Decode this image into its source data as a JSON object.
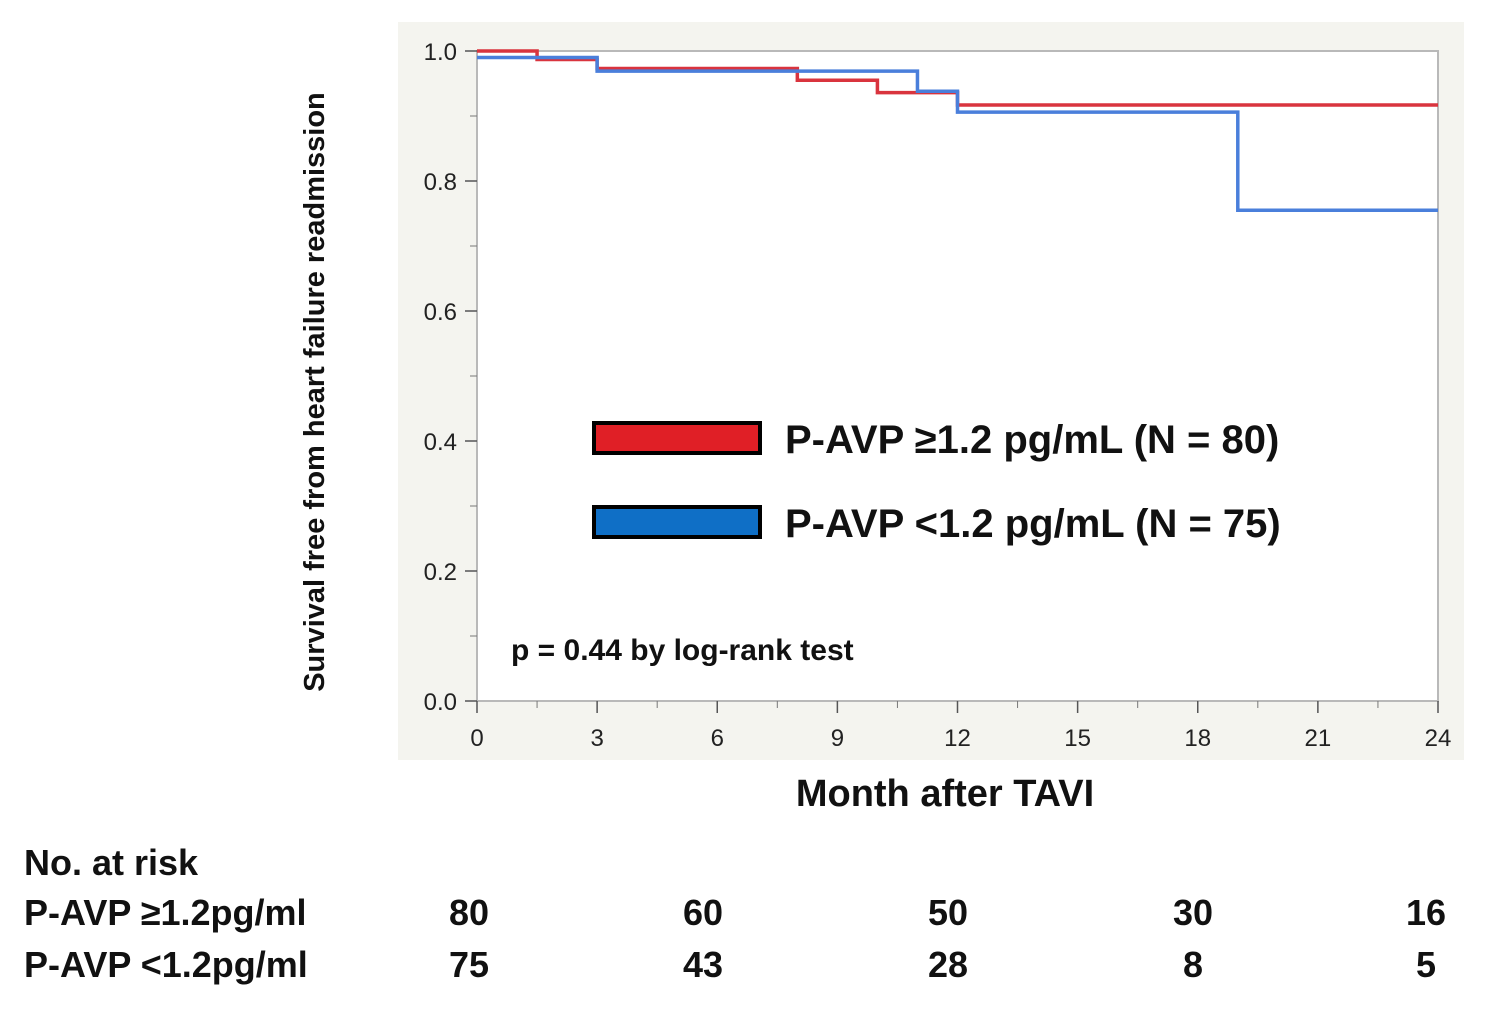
{
  "chart_data": {
    "type": "line",
    "subtype": "kaplan-meier",
    "xlabel": "Month after TAVI",
    "ylabel": "Survival free from heart failure readmission",
    "xlim": [
      0,
      24
    ],
    "ylim": [
      0.0,
      1.0
    ],
    "x_ticks": [
      0,
      3,
      6,
      9,
      12,
      15,
      18,
      21,
      24
    ],
    "y_ticks": [
      "0.0",
      "0.2",
      "0.4",
      "0.6",
      "0.8",
      "1.0"
    ],
    "grid": false,
    "legend_position": "center-right",
    "series": [
      {
        "name": "P-AVP ≥1.2 pg/mL (N = 80)",
        "color": "#d9343e",
        "steps": [
          [
            0,
            1.0
          ],
          [
            1.5,
            0.987
          ],
          [
            3,
            0.973
          ],
          [
            8,
            0.955
          ],
          [
            10,
            0.936
          ],
          [
            12,
            0.917
          ],
          [
            24,
            0.917
          ]
        ]
      },
      {
        "name": "P-AVP <1.2 pg/mL (N = 75)",
        "color": "#4a7fdb",
        "steps": [
          [
            0,
            0.99
          ],
          [
            3,
            0.969
          ],
          [
            11,
            0.938
          ],
          [
            12,
            0.906
          ],
          [
            19,
            0.755
          ],
          [
            24,
            0.755
          ]
        ]
      }
    ],
    "annotation": "p = 0.44 by log-rank test",
    "risk_table": {
      "title": "No. at risk",
      "rows": [
        {
          "label": "P-AVP ≥1.2pg/ml",
          "values": [
            "80",
            "60",
            "50",
            "30",
            "16"
          ]
        },
        {
          "label": "P-AVP <1.2pg/ml",
          "values": [
            "75",
            "43",
            "28",
            "8",
            "5"
          ]
        }
      ]
    }
  },
  "legend_colors": {
    "red_fill": "#e01f26",
    "blue_fill": "#0f6fc6"
  }
}
